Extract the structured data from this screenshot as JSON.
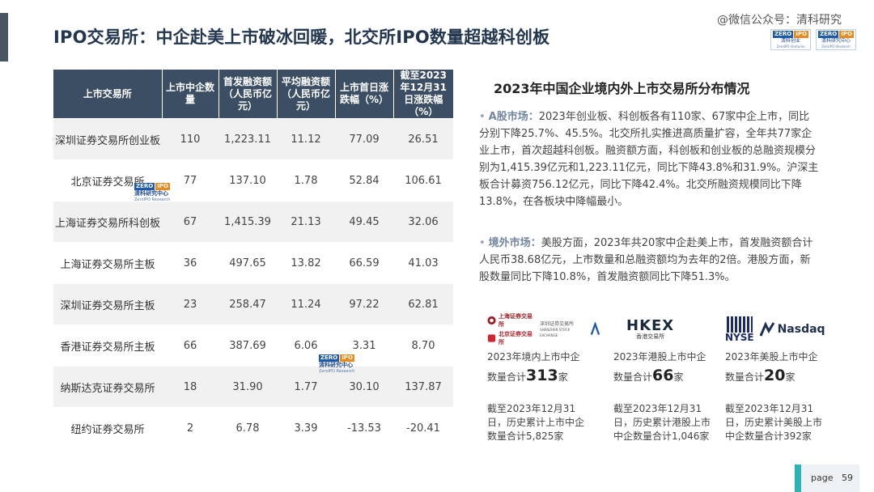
{
  "header": {
    "title": "IPO交易所：中企赴美上市破冰回暖，北交所IPO数量超越科创板",
    "watermark": "@微信公众号：清科研究",
    "logo1": {
      "zero": "ZERO",
      "ipo": "IPO",
      "cn": "清科创业",
      "en": "ZeroIPO Ventures"
    },
    "logo2": {
      "zero": "ZERO",
      "ipo": "IPO",
      "cn": "清科研究中心",
      "en": "ZeroIPO Research"
    }
  },
  "table": {
    "headers": [
      "上市交易所",
      "上市中企数量",
      "首发融资额（人民币亿元）",
      "平均融资额（人民币亿元）",
      "上市首日涨跌幅（%）",
      "截至2023年12月31日涨跌幅（%）"
    ],
    "rows": [
      {
        "name": "深圳证券交易所创业板",
        "count": "110",
        "total": "1,223.11",
        "avg": "11.12",
        "first_day": "77.09",
        "ytd": "26.51"
      },
      {
        "name": "北京证券交易所",
        "count": "77",
        "total": "137.10",
        "avg": "1.78",
        "first_day": "52.84",
        "ytd": "106.61"
      },
      {
        "name": "上海证券交易所科创板",
        "count": "67",
        "total": "1,415.39",
        "avg": "21.13",
        "first_day": "49.45",
        "ytd": "32.06"
      },
      {
        "name": "上海证券交易所主板",
        "count": "36",
        "total": "497.65",
        "avg": "13.82",
        "first_day": "66.59",
        "ytd": "41.03"
      },
      {
        "name": "深圳证券交易所主板",
        "count": "23",
        "total": "258.47",
        "avg": "11.24",
        "first_day": "97.22",
        "ytd": "62.81"
      },
      {
        "name": "香港证券交易所主板",
        "count": "66",
        "total": "387.69",
        "avg": "6.06",
        "first_day": "3.31",
        "ytd": "8.70"
      },
      {
        "name": "纳斯达克证券交易所",
        "count": "18",
        "total": "31.90",
        "avg": "1.77",
        "first_day": "30.10",
        "ytd": "137.87"
      },
      {
        "name": "纽约证券交易所",
        "count": "2",
        "total": "6.78",
        "avg": "3.39",
        "first_day": "-13.53",
        "ytd": "-20.41"
      }
    ],
    "stamp": {
      "zero": "ZERO",
      "ipo": "IPO",
      "cn": "清科研究中心",
      "en": "ZeroIPO Research"
    }
  },
  "right": {
    "section_title": "2023年中国企业境内外上市交易所分布情况",
    "bullet1": {
      "head": "A股市场：",
      "text": "2023年创业板、科创板各有110家、67家中企上市，同比分别下降25.7%、45.5%。北交所扎实推进高质量扩容，全年共77家企业上市，首次超越科创板。融资额方面，科创板和创业板的总融资规模分别为1,415.39亿元和1,223.11亿元，同比下降43.8%和31.9%。沪深主板合计募资756.12亿元，同比下降42.4%。北交所融资规模同比下降13.8%，在各板块中降幅最小。"
    },
    "bullet2": {
      "head": "境外市场：",
      "text": "美股方面，2023年共20家中企赴美上市，首发融资额合计人民币38.68亿元，上市数量和总融资额均为去年的2倍。港股方面，新股数量同比下降10.8%，首发融资额同比下降51.3%。"
    },
    "columns": [
      {
        "label": "2023年境内上市中企",
        "prefix": "数量合计",
        "number": "313",
        "suffix": "家",
        "cumulative": "截至2023年12月31日，历史累计上市中企数量合计5,825家"
      },
      {
        "label": "2023年港股上市中企",
        "prefix": "数量合计",
        "number": "66",
        "suffix": "家",
        "cumulative": "截至2023年12月31日，历史累计港股上市中企数量合计1,046家"
      },
      {
        "label": "2023年美股上市中企",
        "prefix": "数量合计",
        "number": "20",
        "suffix": "家",
        "cumulative": "截至2023年12月31日，历史累计美股上市中企数量合计392家"
      }
    ],
    "logos": {
      "sse": "上海证券交易所",
      "szse": "深圳证券交易所",
      "szse_en": "SHENZHEN STOCK EXCHANGE",
      "bse": "北京证券交易所",
      "hkex": "HKEX",
      "hkex_cn": "香港交易所",
      "nyse": "NYSE",
      "nasdaq": "Nasdaq"
    }
  },
  "footer": {
    "page_label": "page",
    "page_number": "59"
  },
  "colors": {
    "header_bg": "#3c4e63",
    "positive": "#c8102e",
    "negative": "#2aa9a4",
    "accent": "#2bb3b8"
  }
}
